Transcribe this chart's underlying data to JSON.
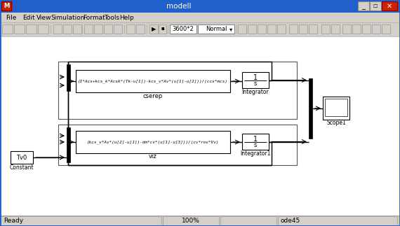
{
  "title": "modell",
  "bg_color": "#d4d0c8",
  "canvas_color": "#ffffff",
  "titlebar_color": "#2060cc",
  "titlebar_text_color": "#ffffff",
  "block1_text": "(I*Acs+kcs_k*Acsk*(Tk-u[1])-kcs_v*Av*(u[1]-u[2]))/(ccs*mcs)",
  "block1_label": "cserep",
  "block2_text": "(kcs_v*Av*(u[2]-u[1])-dm*cv*(u[1]-u[3]))/(cv*rov*Vv)",
  "block2_label": "viz",
  "integrator1_label": "Integrator",
  "integrator2_label": "Integrator1",
  "scope_label": "Scope1",
  "constant_label": "Constant",
  "constant_value": "Tv0",
  "status_text1": "Ready",
  "status_text2": "100%",
  "status_text3": "ode45",
  "toolbar_value": "3600*2",
  "toolbar_mode": "Normal",
  "menu_items": [
    "File",
    "Edit",
    "View",
    "Simulation",
    "Format",
    "Tools",
    "Help"
  ],
  "menu_x": [
    8,
    32,
    52,
    72,
    118,
    148,
    170
  ]
}
